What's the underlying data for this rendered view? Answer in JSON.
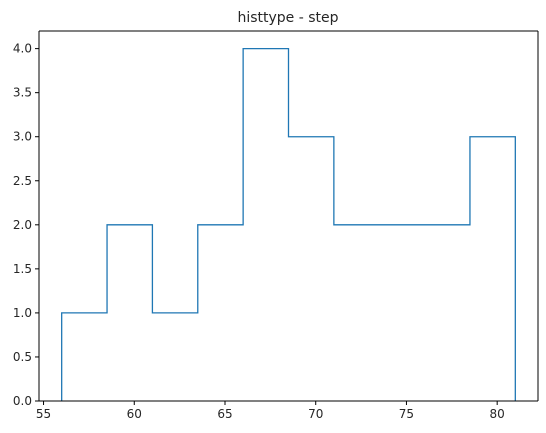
{
  "chart_data": {
    "type": "histogram",
    "histtype": "step",
    "title": "histtype - step",
    "xlabel": "",
    "ylabel": "",
    "bin_edges": [
      56.0,
      58.5,
      61.0,
      63.5,
      66.0,
      68.5,
      71.0,
      73.5,
      76.0,
      78.5,
      81.0
    ],
    "counts": [
      1,
      2,
      1,
      2,
      4,
      3,
      2,
      2,
      2,
      3
    ],
    "xlim": [
      54.75,
      82.25
    ],
    "ylim": [
      0,
      4.2
    ],
    "x_ticks": [
      55,
      60,
      65,
      70,
      75,
      80
    ],
    "x_tick_labels": [
      "55",
      "60",
      "65",
      "70",
      "75",
      "80"
    ],
    "y_ticks": [
      0,
      0.5,
      1.0,
      1.5,
      2.0,
      2.5,
      3.0,
      3.5,
      4.0
    ],
    "y_tick_labels": [
      "0.0",
      "0.5",
      "1.0",
      "1.5",
      "2.0",
      "2.5",
      "3.0",
      "3.5",
      "4.0"
    ],
    "grid": false,
    "line_color": "#1f77b4"
  }
}
